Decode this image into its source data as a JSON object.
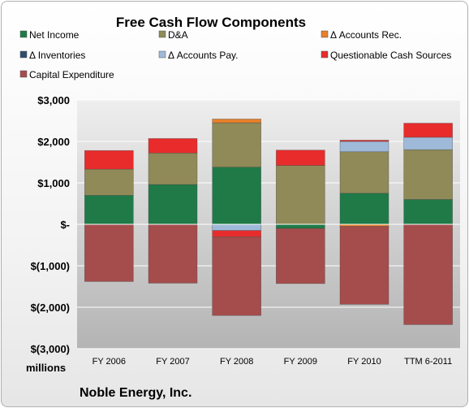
{
  "chart_data": {
    "type": "bar",
    "stacked": true,
    "title": "Free Cash Flow Components",
    "units_label": "millions",
    "company": "Noble Energy, Inc.",
    "categories": [
      "FY 2006",
      "FY 2007",
      "FY 2008",
      "FY 2009",
      "FY 2010",
      "TTM 6-2011"
    ],
    "ylim": [
      -3000,
      3000
    ],
    "yticks": [
      3000,
      2000,
      1000,
      0,
      -1000,
      -2000,
      -3000
    ],
    "ytick_labels": [
      "$3,000",
      "$2,000",
      "$1,000",
      "$-",
      "$(1,000)",
      "$(2,000)",
      "$(3,000)"
    ],
    "grid": true,
    "legend_position": "top",
    "series": [
      {
        "name": "Net Income",
        "color": "#1f7a48",
        "values": [
          700,
          960,
          1380,
          -100,
          750,
          600
        ]
      },
      {
        "name": "D&A",
        "color": "#8f8a57",
        "values": [
          630,
          760,
          1070,
          1420,
          1000,
          1200
        ]
      },
      {
        "name": "Δ Accounts Rec.",
        "color": "#e8802a",
        "values": [
          0,
          0,
          90,
          0,
          -50,
          0
        ]
      },
      {
        "name": "Δ Inventories",
        "color": "#2f4e6e",
        "values": [
          0,
          0,
          0,
          0,
          0,
          0
        ]
      },
      {
        "name": "Δ Accounts Pay.",
        "color": "#9fb9d8",
        "values": [
          0,
          0,
          -150,
          0,
          250,
          300
        ]
      },
      {
        "name": "Questionable Cash Sources",
        "color": "#e82c2c",
        "values": [
          450,
          350,
          -150,
          370,
          30,
          340
        ]
      },
      {
        "name": "Capital Expenditure",
        "color": "#a54c4c",
        "values": [
          -1380,
          -1420,
          -1900,
          -1330,
          -1880,
          -2420
        ]
      }
    ]
  }
}
